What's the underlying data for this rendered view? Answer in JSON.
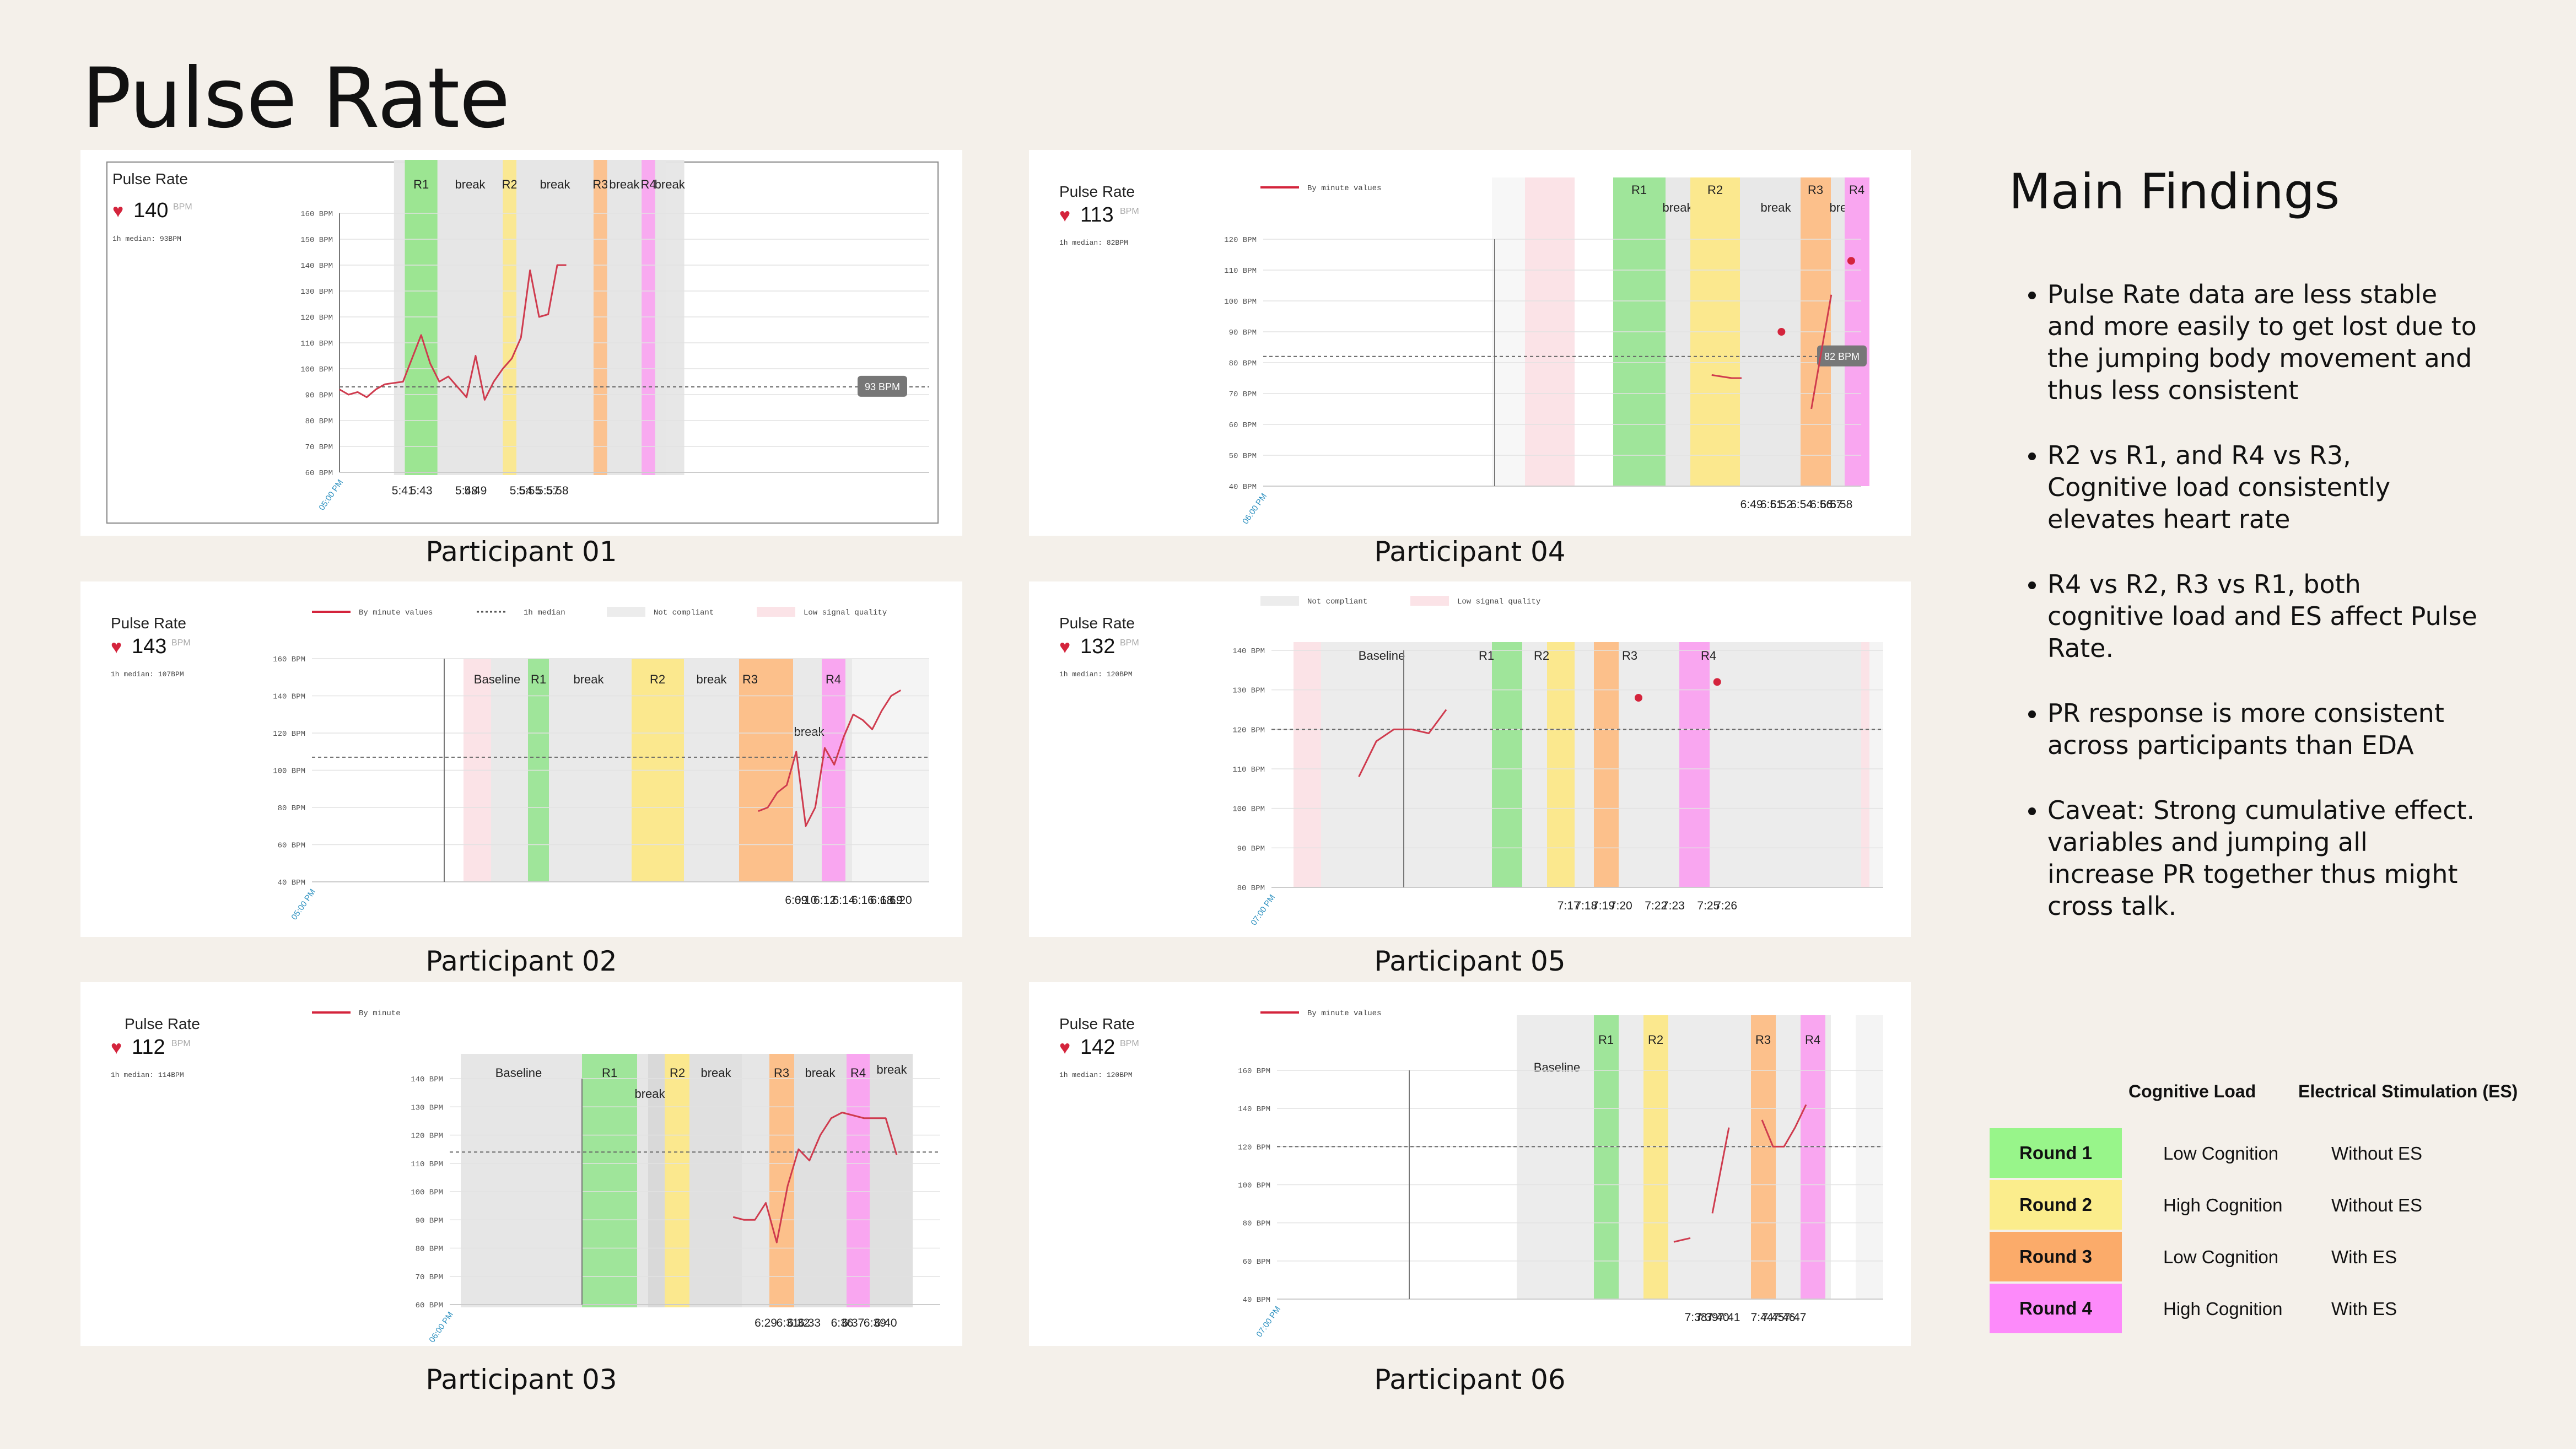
{
  "page_title": "Pulse Rate",
  "findings_title": "Main Findings",
  "findings": [
    "Pulse Rate data are less stable and more easily to get lost due to the jumping body movement and thus less consistent",
    "R2 vs R1, and R4 vs R3, Cognitive load consistently elevates heart rate",
    "R4 vs R2, R3 vs R1, both cognitive load and ES affect Pulse Rate.",
    "PR response is more consistent across participants than EDA",
    "Caveat: Strong cumulative effect. variables and jumping all increase PR together thus might cross talk."
  ],
  "legend": {
    "col_headers": [
      "Cognitive Load",
      "Electrical Stimulation (ES)"
    ],
    "rows": [
      {
        "round": "Round 1",
        "cognition": "Low Cognition",
        "es": "Without ES",
        "color": "#98f58a"
      },
      {
        "round": "Round 2",
        "cognition": "High Cognition",
        "es": "Without ES",
        "color": "#fbed8c"
      },
      {
        "round": "Round 3",
        "cognition": "Low Cognition",
        "es": "With ES",
        "color": "#fbab6a"
      },
      {
        "round": "Round 4",
        "cognition": "High Cognition",
        "es": "With ES",
        "color": "#fd8afa"
      }
    ]
  },
  "chart_data": [
    {
      "type": "line",
      "participant": "Participant 01",
      "chart_title": "Pulse Rate",
      "current_value": "140",
      "unit": "BPM",
      "median_text": "1h median: 93BPM",
      "legend_items": [],
      "ylim": [
        60,
        160
      ],
      "y_ticks": [
        60,
        70,
        80,
        90,
        100,
        110,
        120,
        130,
        140,
        150,
        160
      ],
      "y_tick_labels": [
        "60 BPM",
        "70 BPM",
        "80 BPM",
        "90 BPM",
        "100 BPM",
        "110 BPM",
        "120 BPM",
        "130 BPM",
        "140 BPM",
        "150 BPM",
        "160 BPM"
      ],
      "x_range": [
        5.34,
        5.99
      ],
      "x_tick_labels": [
        {
          "x": 5.41,
          "label": "5:41"
        },
        {
          "x": 5.43,
          "label": "5:43"
        },
        {
          "x": 5.48,
          "label": "5:48"
        },
        {
          "x": 5.49,
          "label": "5:49"
        },
        {
          "x": 5.54,
          "label": "5:54"
        },
        {
          "x": 5.55,
          "label": "5:55"
        },
        {
          "x": 5.57,
          "label": "5:57"
        },
        {
          "x": 5.58,
          "label": "5:58"
        }
      ],
      "axis_start_label": "05:00 PM",
      "median": 93,
      "median_badge": "93 BPM",
      "bands": [
        {
          "x0": 5.4,
          "x1": 5.7,
          "kind": "gray",
          "label": ""
        },
        {
          "x0": 5.412,
          "x1": 5.448,
          "kind": "r1",
          "label": "R1"
        },
        {
          "x0": 5.448,
          "x1": 5.52,
          "kind": "gray",
          "label": "break"
        },
        {
          "x0": 5.52,
          "x1": 5.535,
          "kind": "r2",
          "label": "R2"
        },
        {
          "x0": 5.535,
          "x1": 5.62,
          "kind": "gray",
          "label": "break"
        },
        {
          "x0": 5.62,
          "x1": 5.635,
          "kind": "r3",
          "label": "R3"
        },
        {
          "x0": 5.635,
          "x1": 5.673,
          "kind": "gray",
          "label": "break"
        },
        {
          "x0": 5.673,
          "x1": 5.688,
          "kind": "r4",
          "label": "R4"
        },
        {
          "x0": 5.688,
          "x1": 5.72,
          "kind": "gray",
          "label": "break"
        }
      ],
      "series": [
        {
          "x": [
            5.34,
            5.35,
            5.36,
            5.37,
            5.38,
            5.39,
            5.41,
            5.43,
            5.44,
            5.45,
            5.46,
            5.47,
            5.48,
            5.49,
            5.5,
            5.51,
            5.52,
            5.53,
            5.54,
            5.55,
            5.56,
            5.57,
            5.58,
            5.59
          ],
          "y": [
            92,
            90,
            91,
            89,
            92,
            94,
            95,
            113,
            102,
            95,
            97,
            93,
            89,
            105,
            88,
            95,
            100,
            104,
            112,
            138,
            120,
            121,
            140,
            140
          ]
        }
      ]
    },
    {
      "type": "line",
      "participant": "Participant 02",
      "chart_title": "Pulse Rate",
      "current_value": "143",
      "unit": "BPM",
      "median_text": "1h median: 107BPM",
      "legend_items": [
        "By minute values",
        "1h median",
        "Not compliant",
        "Low signal quality"
      ],
      "ylim": [
        40,
        160
      ],
      "y_ticks": [
        40,
        60,
        80,
        100,
        120,
        140,
        160
      ],
      "y_tick_labels": [
        "40 BPM",
        "60 BPM",
        "80 BPM",
        "100 BPM",
        "120 BPM",
        "140 BPM",
        "160 BPM"
      ],
      "x_range": [
        5.58,
        6.23
      ],
      "x_tick_labels": [
        {
          "x": 6.09,
          "label": "6:09"
        },
        {
          "x": 6.1,
          "label": "6:10"
        },
        {
          "x": 6.12,
          "label": "6:12"
        },
        {
          "x": 6.14,
          "label": "6:14"
        },
        {
          "x": 6.16,
          "label": "6:16"
        },
        {
          "x": 6.18,
          "label": "6:18"
        },
        {
          "x": 6.19,
          "label": "6:19"
        },
        {
          "x": 6.2,
          "label": "6:20"
        }
      ],
      "axis_start_label": "05:00 PM",
      "median": 107,
      "median_badge": "",
      "bands": [
        {
          "x0": 6.02,
          "x1": 6.22,
          "kind": "gray",
          "label": ""
        },
        {
          "x0": 6.02,
          "x1": 6.05,
          "kind": "pink",
          "label": "Baseline"
        },
        {
          "x0": 6.075,
          "x1": 6.09,
          "kind": "r1",
          "label": "R1"
        },
        {
          "x0": 6.09,
          "x1": 6.135,
          "kind": "gray",
          "label": "break"
        },
        {
          "x0": 6.135,
          "x1": 6.165,
          "kind": "r2",
          "label": "R2"
        },
        {
          "x0": 6.165,
          "x1": 6.19,
          "kind": "gray",
          "label": "break"
        },
        {
          "x0": 6.19,
          "x1": 6.22,
          "kind": "r3",
          "label": "R3"
        },
        {
          "x0": 6.22,
          "x1": 6.235,
          "kind": "gray",
          "label": "break"
        },
        {
          "x0": 6.235,
          "x1": 6.248,
          "kind": "r4",
          "label": "R4"
        }
      ],
      "series": [
        {
          "x": [
            6.05,
            6.06,
            6.07,
            6.08,
            6.09,
            6.1,
            6.11,
            6.12,
            6.13,
            6.14,
            6.15,
            6.16,
            6.17,
            6.18,
            6.19,
            6.2
          ],
          "y": [
            78,
            80,
            88,
            92,
            110,
            70,
            80,
            112,
            103,
            118,
            130,
            127,
            122,
            132,
            140,
            143
          ]
        }
      ]
    },
    {
      "type": "line",
      "participant": "Participant 03",
      "chart_title": "Pulse Rate",
      "current_value": "112",
      "unit": "BPM",
      "median_text": "1h median: 114BPM",
      "legend_items": [
        "By minute"
      ],
      "ylim": [
        60,
        140
      ],
      "y_ticks": [
        60,
        70,
        80,
        90,
        100,
        110,
        120,
        130,
        140
      ],
      "y_tick_labels": [
        "60 BPM",
        "70 BPM",
        "80 BPM",
        "90 BPM",
        "100 BPM",
        "110 BPM",
        "120 BPM",
        "130 BPM",
        "140 BPM"
      ],
      "x_range": [
        6.0,
        6.45
      ],
      "x_tick_labels": [
        {
          "x": 6.29,
          "label": "6:29"
        },
        {
          "x": 6.31,
          "label": "6:31"
        },
        {
          "x": 6.32,
          "label": "6:32"
        },
        {
          "x": 6.33,
          "label": "6:33"
        },
        {
          "x": 6.36,
          "label": "6:36"
        },
        {
          "x": 6.37,
          "label": "6:37"
        },
        {
          "x": 6.39,
          "label": "6:39"
        },
        {
          "x": 6.4,
          "label": "6:40"
        }
      ],
      "axis_start_label": "06:00 PM",
      "median": 114,
      "median_badge": "",
      "bands": [],
      "series": [
        {
          "x": [
            6.26,
            6.27,
            6.28,
            6.29,
            6.3,
            6.31,
            6.32,
            6.33,
            6.34,
            6.35,
            6.36,
            6.37,
            6.38,
            6.39,
            6.4,
            6.41
          ],
          "y": [
            91,
            90,
            90,
            96,
            82,
            102,
            115,
            111,
            120,
            126,
            128,
            127,
            126,
            126,
            126,
            113
          ]
        }
      ]
    },
    {
      "type": "line",
      "participant": "Participant 04",
      "chart_title": "Pulse Rate",
      "current_value": "113",
      "unit": "BPM",
      "median_text": "1h median: 82BPM",
      "legend_items": [
        "By minute values"
      ],
      "ylim": [
        40,
        120
      ],
      "y_ticks": [
        40,
        50,
        60,
        70,
        80,
        90,
        100,
        110,
        120
      ],
      "y_tick_labels": [
        "40 BPM",
        "50 BPM",
        "60 BPM",
        "70 BPM",
        "80 BPM",
        "90 BPM",
        "100 BPM",
        "110 BPM",
        "120 BPM"
      ],
      "x_range": [
        6.0,
        6.6
      ],
      "x_tick_labels": [
        {
          "x": 6.49,
          "label": "6:49"
        },
        {
          "x": 6.51,
          "label": "6:51"
        },
        {
          "x": 6.52,
          "label": "6:52"
        },
        {
          "x": 6.54,
          "label": "6:54"
        },
        {
          "x": 6.56,
          "label": "6:56"
        },
        {
          "x": 6.57,
          "label": "6:57"
        },
        {
          "x": 6.58,
          "label": "6:58"
        }
      ],
      "axis_start_label": "06:00 PM",
      "median": 82,
      "median_badge": "82 BPM",
      "bands": [],
      "series": [
        {
          "x": [
            6.45,
            6.47,
            6.48
          ],
          "y": [
            76,
            75,
            75
          ]
        },
        {
          "x": [
            6.55,
            6.57
          ],
          "y": [
            65,
            102
          ]
        }
      ],
      "points": [
        {
          "x": 6.52,
          "y": 90
        },
        {
          "x": 6.59,
          "y": 113
        }
      ]
    },
    {
      "type": "line",
      "participant": "Participant 05",
      "chart_title": "Pulse Rate",
      "current_value": "132",
      "unit": "BPM",
      "median_text": "1h median: 120BPM",
      "legend_items": [
        "Not compliant",
        "Low signal quality"
      ],
      "ylim": [
        80,
        140
      ],
      "y_ticks": [
        80,
        90,
        100,
        110,
        120,
        130,
        140
      ],
      "y_tick_labels": [
        "80 BPM",
        "90 BPM",
        "100 BPM",
        "110 BPM",
        "120 BPM",
        "130 BPM",
        "140 BPM"
      ],
      "x_range": [
        7.0,
        7.35
      ],
      "x_tick_labels": [
        {
          "x": 7.17,
          "label": "7:17"
        },
        {
          "x": 7.18,
          "label": "7:18"
        },
        {
          "x": 7.19,
          "label": "7:19"
        },
        {
          "x": 7.2,
          "label": "7:20"
        },
        {
          "x": 7.22,
          "label": "7:22"
        },
        {
          "x": 7.23,
          "label": "7:23"
        },
        {
          "x": 7.25,
          "label": "7:25"
        },
        {
          "x": 7.26,
          "label": "7:26"
        }
      ],
      "axis_start_label": "07:00 PM",
      "median": 120,
      "median_badge": "",
      "bands": [],
      "series": [
        {
          "x": [
            7.05,
            7.06,
            7.07,
            7.08,
            7.09,
            7.1
          ],
          "y": [
            108,
            117,
            120,
            120,
            119,
            125
          ]
        }
      ],
      "points": [
        {
          "x": 7.21,
          "y": 128
        },
        {
          "x": 7.255,
          "y": 132
        }
      ]
    },
    {
      "type": "line",
      "participant": "Participant 06",
      "chart_title": "Pulse Rate",
      "current_value": "142",
      "unit": "BPM",
      "median_text": "1h median: 120BPM",
      "legend_items": [
        "By minute values"
      ],
      "ylim": [
        40,
        160
      ],
      "y_ticks": [
        40,
        60,
        80,
        100,
        120,
        140,
        160
      ],
      "y_tick_labels": [
        "40 BPM",
        "60 BPM",
        "80 BPM",
        "100 BPM",
        "120 BPM",
        "140 BPM",
        "160 BPM"
      ],
      "x_range": [
        7.0,
        7.55
      ],
      "x_tick_labels": [
        {
          "x": 7.38,
          "label": "7:38"
        },
        {
          "x": 7.39,
          "label": "7:39"
        },
        {
          "x": 7.4,
          "label": "7:40"
        },
        {
          "x": 7.41,
          "label": "7:41"
        },
        {
          "x": 7.44,
          "label": "7:44"
        },
        {
          "x": 7.45,
          "label": "7:45"
        },
        {
          "x": 7.46,
          "label": "7:46"
        },
        {
          "x": 7.47,
          "label": "7:47"
        }
      ],
      "axis_start_label": "07:00 PM",
      "median": 120,
      "median_badge": "",
      "bands": [],
      "series": [
        {
          "x": [
            7.36,
            7.375
          ],
          "y": [
            70,
            72
          ]
        },
        {
          "x": [
            7.395,
            7.41
          ],
          "y": [
            85,
            130
          ]
        },
        {
          "x": [
            7.44,
            7.45,
            7.46,
            7.47,
            7.48
          ],
          "y": [
            134,
            120,
            120,
            130,
            142
          ]
        }
      ]
    }
  ]
}
